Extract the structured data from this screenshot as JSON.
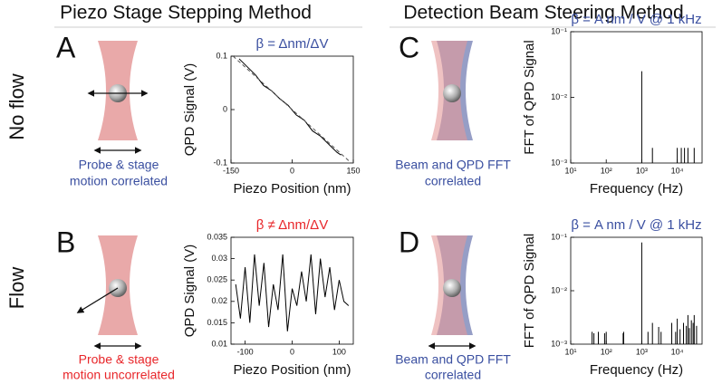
{
  "figure": {
    "column_titles": [
      "Piezo Stage Stepping Method",
      "Detection Beam Steering Method"
    ],
    "row_labels": [
      "No flow",
      "Flow"
    ],
    "panels": [
      {
        "letter": "A",
        "caption": [
          "Probe & stage",
          "motion correlated"
        ]
      },
      {
        "letter": "B",
        "caption": [
          "Probe & stage",
          "motion uncorrelated"
        ]
      },
      {
        "letter": "C",
        "caption": [
          "Beam and QPD FFT",
          "correlated"
        ]
      },
      {
        "letter": "D",
        "caption": [
          "Beam and QPD FFT",
          "correlated"
        ]
      }
    ]
  },
  "chart_data": [
    {
      "type": "line",
      "title": "β = Δnm/ΔV",
      "title_color": "#3a4fa0",
      "x_label": "Piezo Position (nm)",
      "y_label": "QPD Signal (V)",
      "xlim": [
        -150,
        150
      ],
      "xticks": [
        -150,
        0,
        150
      ],
      "ylim": [
        -0.1,
        0.1
      ],
      "yticks": [
        -0.1,
        0,
        0.1
      ],
      "series": [
        {
          "color": "#000000",
          "dash": false,
          "x": [
            -130,
            -110,
            -90,
            -70,
            -50,
            -30,
            -10,
            10,
            30,
            50,
            70,
            90,
            110,
            120
          ],
          "values": [
            0.095,
            0.08,
            0.065,
            0.045,
            0.035,
            0.02,
            0.008,
            -0.01,
            -0.02,
            -0.04,
            -0.05,
            -0.065,
            -0.08,
            -0.085
          ]
        },
        {
          "color": "#555555",
          "dash": true,
          "x": [
            -145,
            145
          ],
          "values": [
            0.1,
            -0.1
          ]
        }
      ]
    },
    {
      "type": "line",
      "title": "β ≠ Δnm/ΔV",
      "title_color": "#e8262a",
      "x_label": "Piezo Position (nm)",
      "y_label": "QPD Signal (V)",
      "xlim": [
        -130,
        130
      ],
      "xticks": [
        -100,
        0,
        100
      ],
      "ylim": [
        0.01,
        0.035
      ],
      "yticks": [
        0.01,
        0.015,
        0.02,
        0.025,
        0.03,
        0.035
      ],
      "series": [
        {
          "color": "#000000",
          "dash": false,
          "x": [
            -120,
            -110,
            -100,
            -90,
            -80,
            -70,
            -60,
            -50,
            -40,
            -30,
            -20,
            -10,
            0,
            10,
            20,
            30,
            40,
            50,
            60,
            70,
            80,
            90,
            100,
            110,
            120
          ],
          "values": [
            0.024,
            0.016,
            0.028,
            0.015,
            0.031,
            0.019,
            0.029,
            0.014,
            0.024,
            0.018,
            0.031,
            0.013,
            0.023,
            0.019,
            0.027,
            0.02,
            0.031,
            0.017,
            0.03,
            0.021,
            0.028,
            0.018,
            0.025,
            0.02,
            0.019
          ]
        }
      ]
    },
    {
      "type": "stem",
      "title": "β = A nm / V @ 1 kHz",
      "title_color": "#3a4fa0",
      "x_label": "Frequency (Hz)",
      "y_label": "FFT of QPD Signal",
      "xlog": true,
      "ylog": true,
      "xlim": [
        10,
        50000
      ],
      "xticks": [
        {
          "value": 10,
          "label": "10¹"
        },
        {
          "value": 100,
          "label": "10²"
        },
        {
          "value": 1000,
          "label": "10³"
        },
        {
          "value": 10000,
          "label": "10⁴"
        }
      ],
      "ylim": [
        0.001,
        0.1
      ],
      "yticks": [
        {
          "value": 0.001,
          "label": "10⁻³"
        },
        {
          "value": 0.01,
          "label": "10⁻²"
        },
        {
          "value": 0.1,
          "label": "10⁻¹"
        }
      ],
      "series": [
        {
          "color": "#000000",
          "x": [
            1000,
            2000,
            10000,
            13000,
            16000,
            20000,
            30000
          ],
          "values": [
            0.025,
            0.0017,
            0.0017,
            0.0017,
            0.0017,
            0.0017,
            0.0017
          ]
        }
      ]
    },
    {
      "type": "stem",
      "title": "β = A nm / V @ 1 kHz",
      "title_color": "#3a4fa0",
      "x_label": "Frequency (Hz)",
      "y_label": "FFT of QPD Signal",
      "xlog": true,
      "ylog": true,
      "xlim": [
        10,
        50000
      ],
      "xticks": [
        {
          "value": 10,
          "label": "10¹"
        },
        {
          "value": 100,
          "label": "10²"
        },
        {
          "value": 1000,
          "label": "10³"
        },
        {
          "value": 10000,
          "label": "10⁴"
        }
      ],
      "ylim": [
        0.001,
        0.1
      ],
      "yticks": [
        {
          "value": 0.001,
          "label": "10⁻³"
        },
        {
          "value": 0.01,
          "label": "10⁻²"
        },
        {
          "value": 0.1,
          "label": "10⁻¹"
        }
      ],
      "series": [
        {
          "color": "#000000",
          "x": [
            40,
            45,
            60,
            90,
            100,
            300,
            310,
            1000,
            1500,
            2000,
            3000,
            3500,
            7000,
            9000,
            10000,
            12000,
            15000,
            18000,
            20000,
            22000,
            25000,
            28000,
            30000,
            35000
          ],
          "values": [
            0.0017,
            0.0016,
            0.0017,
            0.0016,
            0.0017,
            0.0016,
            0.0017,
            0.08,
            0.0017,
            0.0025,
            0.0021,
            0.0017,
            0.0025,
            0.0017,
            0.003,
            0.0019,
            0.0025,
            0.0022,
            0.0035,
            0.002,
            0.0028,
            0.0025,
            0.0035,
            0.0022
          ]
        }
      ]
    }
  ]
}
